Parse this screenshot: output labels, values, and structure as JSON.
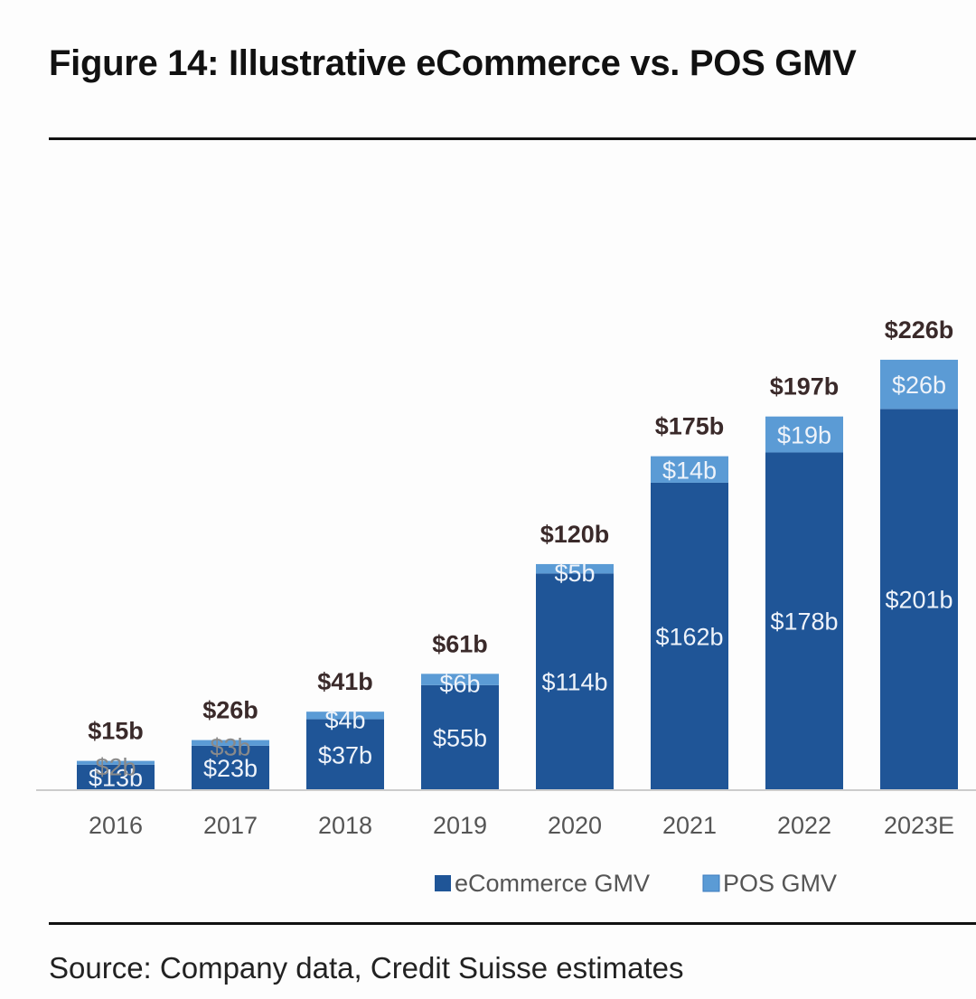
{
  "title": "Figure 14: Illustrative eCommerce vs. POS GMV",
  "source": "Source: Company data, Credit Suisse estimates",
  "colors": {
    "ecommerce": "#1f5597",
    "pos": "#5b9bd5",
    "total_label": "#3a2a2a",
    "axis": "#cccccc"
  },
  "chart_data": {
    "type": "bar",
    "stacked": true,
    "title": "Figure 14: Illustrative eCommerce vs. POS GMV",
    "categories": [
      "2016",
      "2017",
      "2018",
      "2019",
      "2020",
      "2021",
      "2022",
      "2023E"
    ],
    "series": [
      {
        "name": "eCommerce GMV",
        "values": [
          13,
          23,
          37,
          55,
          114,
          162,
          178,
          201
        ],
        "labels": [
          "$13b",
          "$23b",
          "$37b",
          "$55b",
          "$114b",
          "$162b",
          "$178b",
          "$201b"
        ]
      },
      {
        "name": "POS GMV",
        "values": [
          2,
          3,
          4,
          6,
          5,
          14,
          19,
          26
        ],
        "labels": [
          "$2b",
          "$3b",
          "$4b",
          "$6b",
          "$5b",
          "$14b",
          "$19b",
          "$26b"
        ]
      }
    ],
    "totals": [
      15,
      26,
      41,
      61,
      120,
      175,
      197,
      226
    ],
    "total_labels": [
      "$15b",
      "$26b",
      "$41b",
      "$61b",
      "$120b",
      "$175b",
      "$197b",
      "$226b"
    ],
    "xlabel": "",
    "ylabel": "",
    "ylim": [
      0,
      226
    ],
    "grid": false,
    "legend": "bottom"
  }
}
